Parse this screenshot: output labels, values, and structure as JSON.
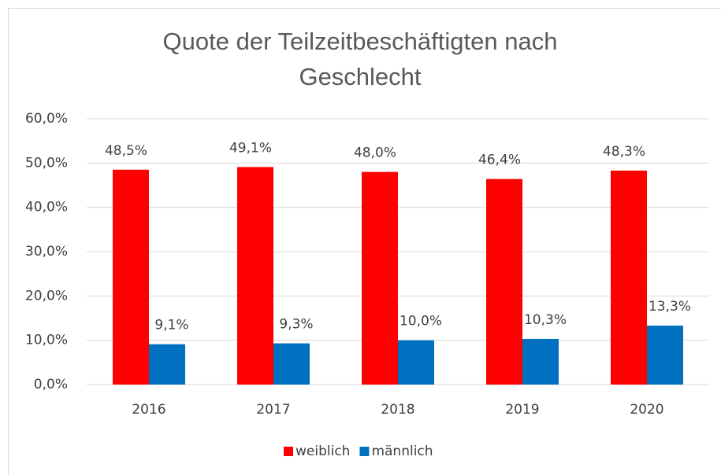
{
  "chart_data": {
    "type": "bar",
    "title": "Quote der Teilzeitbeschäftigten nach Geschlecht",
    "categories": [
      "2016",
      "2017",
      "2018",
      "2019",
      "2020"
    ],
    "series": [
      {
        "name": "weiblich",
        "color": "#ff0000",
        "values": [
          48.5,
          49.1,
          48.0,
          46.4,
          48.3
        ],
        "value_labels": [
          "48,5%",
          "49,1%",
          "48,0%",
          "46,4%",
          "48,3%"
        ]
      },
      {
        "name": "männlich",
        "color": "#0070c0",
        "values": [
          9.1,
          9.3,
          10.0,
          10.3,
          13.3
        ],
        "value_labels": [
          "9,1%",
          "9,3%",
          "10,0%",
          "10,3%",
          "13,3%"
        ]
      }
    ],
    "ylim": [
      0,
      60
    ],
    "yticks": [
      {
        "value": 0,
        "label": "0,0%"
      },
      {
        "value": 10,
        "label": "10,0%"
      },
      {
        "value": 20,
        "label": "20,0%"
      },
      {
        "value": 30,
        "label": "30,0%"
      },
      {
        "value": 40,
        "label": "40,0%"
      },
      {
        "value": 50,
        "label": "50,0%"
      },
      {
        "value": 60,
        "label": "60,0%"
      }
    ],
    "grid": true,
    "legend": "bottom"
  }
}
